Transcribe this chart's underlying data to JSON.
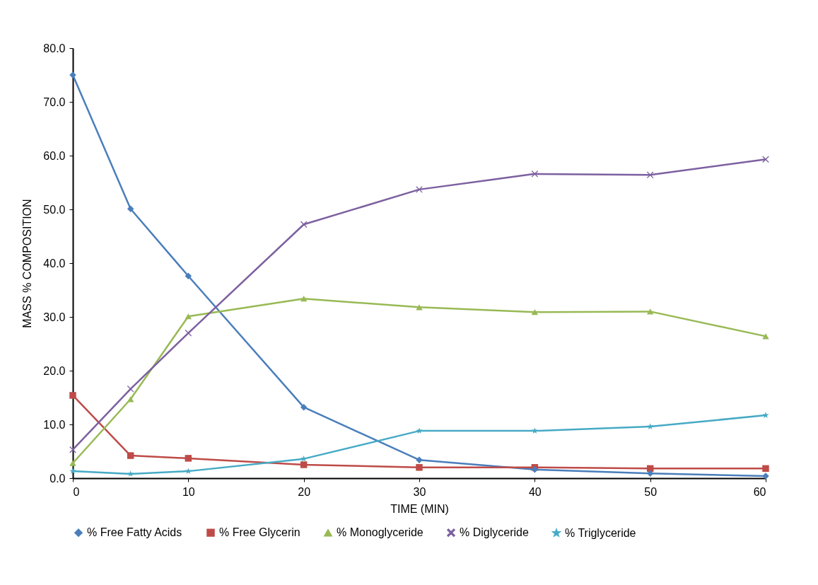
{
  "chart_data": {
    "type": "line",
    "xlabel": "TIME (MIN)",
    "ylabel": "MASS % COMPOSITION",
    "x": [
      0,
      5,
      10,
      20,
      30,
      40,
      50,
      60
    ],
    "xlim": [
      0,
      60
    ],
    "xticks": [
      0,
      10,
      20,
      30,
      40,
      50,
      60
    ],
    "ylim": [
      0,
      80
    ],
    "yticks": [
      {
        "value": 0,
        "label": "0.0"
      },
      {
        "value": 10,
        "label": "10.0"
      },
      {
        "value": 20,
        "label": "20.0"
      },
      {
        "value": 30,
        "label": "30.0"
      },
      {
        "value": 40,
        "label": "40.0"
      },
      {
        "value": 50,
        "label": "50.0"
      },
      {
        "value": 60,
        "label": "60.0"
      },
      {
        "value": 70,
        "label": "70.0"
      },
      {
        "value": 80,
        "label": "80.0"
      }
    ],
    "grid": false,
    "legend": "bottom",
    "line_style": "solid",
    "series": [
      {
        "name": "% Free Fatty Acids",
        "color": "#4a7ebb",
        "marker": "diamond",
        "values": [
          75.0,
          50.1,
          37.6,
          13.2,
          3.4,
          1.6,
          0.9,
          0.4
        ]
      },
      {
        "name": "% Free Glycerin",
        "color": "#be4b48",
        "marker": "square",
        "values": [
          15.4,
          4.2,
          3.7,
          2.5,
          2.0,
          2.0,
          1.8,
          1.8
        ]
      },
      {
        "name": "% Monoglyceride",
        "color": "#98b954",
        "marker": "triangle",
        "values": [
          2.8,
          14.7,
          30.1,
          33.4,
          31.8,
          30.9,
          31.0,
          26.4
        ]
      },
      {
        "name": "% Diglyceride",
        "color": "#7d60a0",
        "marker": "cross",
        "values": [
          5.3,
          16.6,
          27.0,
          47.2,
          53.7,
          56.6,
          56.4,
          59.3
        ]
      },
      {
        "name": "% Triglyceride",
        "color": "#46aac5",
        "marker": "star",
        "values": [
          1.3,
          0.8,
          1.3,
          3.6,
          8.8,
          8.8,
          9.6,
          11.7
        ]
      }
    ]
  }
}
